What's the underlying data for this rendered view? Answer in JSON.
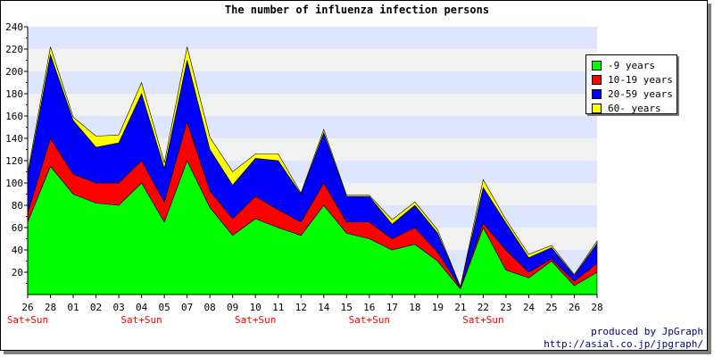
{
  "chart_data": {
    "type": "area",
    "stacked": true,
    "title": "The number of influenza infection persons",
    "categories": [
      "26",
      "28",
      "01",
      "02",
      "03",
      "04",
      "05",
      "07",
      "08",
      "09",
      "10",
      "11",
      "12",
      "14",
      "15",
      "16",
      "17",
      "18",
      "19",
      "21",
      "22",
      "23",
      "24",
      "25",
      "26",
      "28"
    ],
    "weekend_label": "Sat+Sun",
    "weekend_indices": [
      0,
      5,
      10,
      15,
      20
    ],
    "ylim": [
      0,
      240
    ],
    "yticks": [
      20,
      40,
      60,
      80,
      100,
      120,
      140,
      160,
      180,
      200,
      220,
      240
    ],
    "series": [
      {
        "name": "-9 years",
        "color": "#00ff00",
        "values": [
          65,
          115,
          90,
          82,
          80,
          100,
          65,
          120,
          78,
          53,
          68,
          60,
          53,
          80,
          55,
          50,
          40,
          45,
          30,
          5,
          60,
          22,
          15,
          30,
          8,
          20
        ]
      },
      {
        "name": "10-19 years",
        "color": "#ff0000",
        "values": [
          8,
          25,
          18,
          18,
          20,
          20,
          18,
          35,
          15,
          15,
          20,
          16,
          12,
          20,
          10,
          15,
          10,
          15,
          8,
          1,
          4,
          18,
          5,
          2,
          4,
          8
        ]
      },
      {
        "name": "20-59 years",
        "color": "#0000ff",
        "values": [
          33,
          75,
          48,
          32,
          36,
          60,
          30,
          55,
          37,
          30,
          34,
          44,
          25,
          45,
          23,
          23,
          13,
          20,
          17,
          1,
          32,
          24,
          13,
          10,
          5,
          18
        ]
      },
      {
        "name": "60- years",
        "color": "#ffff00",
        "values": [
          3,
          7,
          3,
          10,
          7,
          10,
          5,
          12,
          11,
          12,
          4,
          6,
          1,
          3,
          1,
          1,
          4,
          3,
          3,
          0,
          7,
          3,
          3,
          2,
          1,
          2
        ]
      }
    ],
    "grid": true,
    "legend_position": "top-right"
  },
  "colors": {
    "band_blue": "#dde6fe",
    "band_gray": "#f1f1f1",
    "weekend_label": "#ff0000",
    "credit": "#000080"
  },
  "credit": {
    "line1": "produced by JpGraph",
    "line2": "http://asial.co.jp/jpgraph/"
  }
}
